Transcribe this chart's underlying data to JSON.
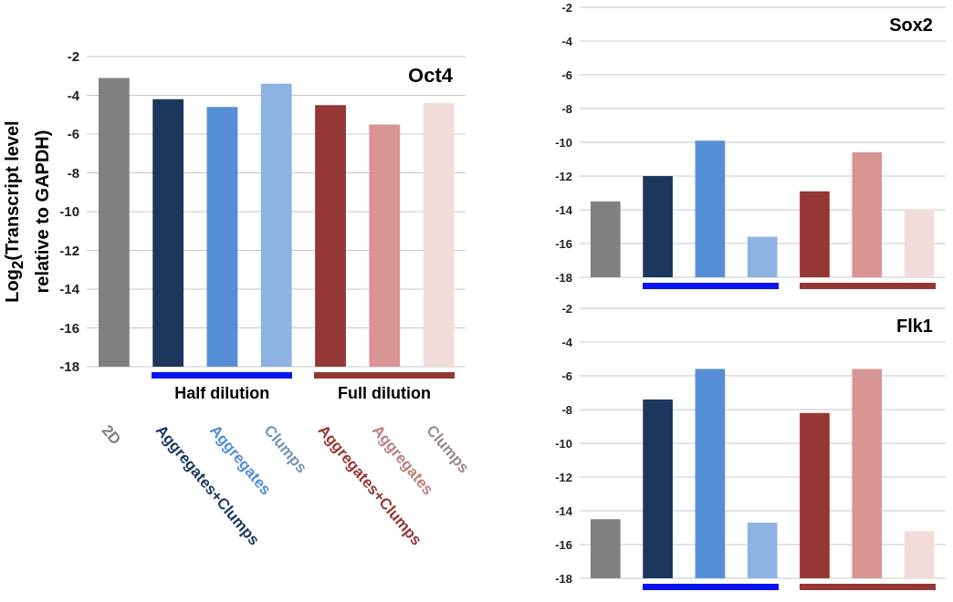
{
  "chart_data": [
    {
      "type": "bar",
      "title": "Oct4",
      "ylabel": "Log$_{2}$(Transcript level relative to GAPDH)",
      "categories": [
        "2D",
        "Aggregates+Clumps",
        "Aggregates",
        "Clumps",
        "Aggregates+Clumps",
        "Aggregates",
        "Clumps"
      ],
      "base": [
        -18,
        -18,
        -18,
        -18,
        -18,
        -18,
        -18
      ],
      "values": [
        14.9,
        13.8,
        13.4,
        14.6,
        13.5,
        12.5,
        13.6
      ],
      "colors": [
        "#808080",
        "#1b375e",
        "#558ed5",
        "#8db3e2",
        "#953735",
        "#d99594",
        "#f2dcdb"
      ],
      "ylim": [
        -18,
        -2
      ],
      "yticks": [
        -18,
        -16,
        -14,
        -12,
        -10,
        -8,
        -6,
        -4,
        -2
      ],
      "grid": "y",
      "annotations": [
        "Half dilution",
        "Full dilution"
      ]
    },
    {
      "type": "bar",
      "title": "Sox2",
      "categories": [
        null,
        null,
        null,
        null,
        null,
        null,
        null
      ],
      "base": [
        -18,
        -18,
        -18,
        -18,
        -18,
        -18,
        -18
      ],
      "values": [
        4.5,
        6.0,
        8.1,
        2.4,
        5.1,
        7.4,
        4.0
      ],
      "colors": [
        "#808080",
        "#1b375e",
        "#558ed5",
        "#8db3e2",
        "#953735",
        "#d99594",
        "#f2dcdb"
      ],
      "ylim": [
        -18,
        -2
      ],
      "yticks": [
        -18,
        -16,
        -14,
        -12,
        -10,
        -8,
        -6,
        -4,
        -2
      ],
      "grid": "y",
      "tick_labels": "y"
    },
    {
      "type": "bar",
      "title": "Flk1",
      "categories": [
        null,
        null,
        null,
        null,
        null,
        null,
        null
      ],
      "base": [
        -18,
        -18,
        -18,
        -18,
        -18,
        -18,
        -18
      ],
      "values": [
        3.5,
        10.6,
        12.4,
        3.3,
        9.8,
        12.4,
        2.8
      ],
      "colors": [
        "#808080",
        "#1b375e",
        "#558ed5",
        "#8db3e2",
        "#953735",
        "#d99594",
        "#f2dcdb"
      ],
      "ylim": [
        -18,
        -2
      ],
      "yticks": [
        -18,
        -16,
        -14,
        -12,
        -10,
        -8,
        -6,
        -4,
        -2
      ],
      "grid": "y",
      "tick_labels": "y"
    }
  ]
}
